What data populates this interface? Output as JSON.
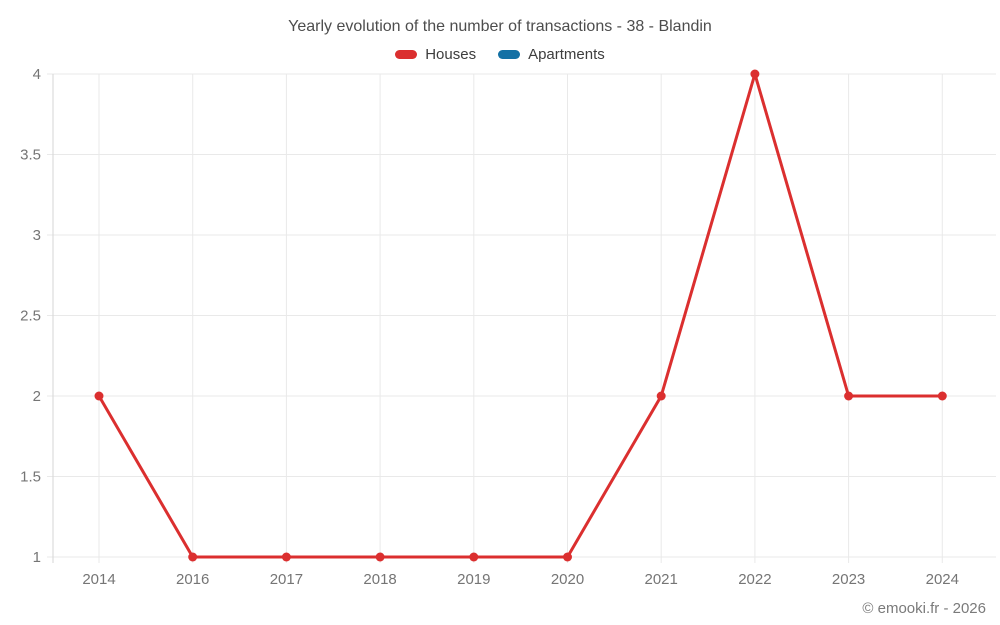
{
  "chart_data": {
    "type": "line",
    "title": "Yearly evolution of the number of transactions - 38 - Blandin",
    "categories": [
      "2014",
      "2016",
      "2017",
      "2018",
      "2019",
      "2020",
      "2021",
      "2022",
      "2023",
      "2024"
    ],
    "series": [
      {
        "name": "Houses",
        "color": "#db2f2f",
        "values": [
          2,
          1,
          1,
          1,
          1,
          1,
          2,
          4,
          2,
          2
        ]
      },
      {
        "name": "Apartments",
        "color": "#1471a5",
        "values": []
      }
    ],
    "xlabel": "",
    "ylabel": "",
    "ylim": [
      1,
      4
    ],
    "yticks": [
      1,
      1.5,
      2,
      2.5,
      3,
      3.5,
      4
    ],
    "grid": true,
    "legend_position": "top"
  },
  "footer": {
    "attribution": "© emooki.fr - 2026"
  },
  "colors": {
    "background": "#ffffff",
    "grid": "#e9e9e9",
    "axis": "#d6d6d6",
    "tick_label": "#757575",
    "title": "#4d4d4d",
    "legend_label": "#3d3d3d",
    "footer": "#7a7a7a"
  }
}
